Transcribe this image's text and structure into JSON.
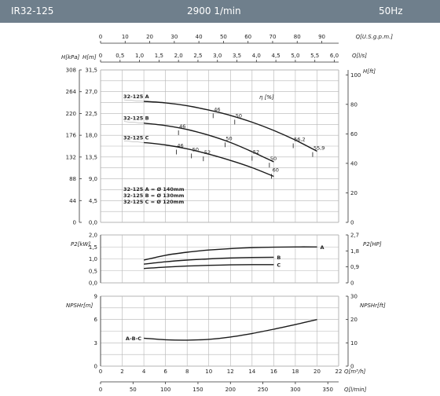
{
  "header": {
    "model": "IR32-125",
    "speed": "2900 1/min",
    "frequency": "50Hz"
  },
  "colors": {
    "header_bg": "#6f7f8c",
    "grid": "#b5b5b5",
    "curve": "#1a1a1a"
  },
  "chart_data": {
    "type": "line",
    "x_axes": {
      "top_usgpm": {
        "label": "Q[U.S.g.p.m.]",
        "ticks": [
          0,
          10,
          20,
          30,
          40,
          50,
          60,
          70,
          80,
          90
        ]
      },
      "top_ls": {
        "label": "Q[l/s]",
        "ticks": [
          "0",
          "0,5",
          "1,0",
          "1,5",
          "2,0",
          "2,5",
          "3,0",
          "3,5",
          "4,0",
          "4,5",
          "5,0",
          "5,5",
          "6,0"
        ]
      },
      "bottom_m3h": {
        "label": "Q[m³/h]",
        "ticks": [
          0,
          2,
          4,
          6,
          8,
          10,
          12,
          14,
          16,
          18,
          20,
          22
        ]
      },
      "bottom_lmin": {
        "label": "Q[l/min]",
        "ticks": [
          0,
          50,
          100,
          150,
          200,
          250,
          300,
          350
        ]
      }
    },
    "head_panel": {
      "left_outer_label": "H[kPa]",
      "left_outer_ticks": [
        "0",
        "44",
        "88",
        "132",
        "176",
        "220",
        "264",
        "308"
      ],
      "left_inner_label": "H[m]",
      "left_inner_ticks": [
        "0,0",
        "4,5",
        "9,0",
        "13,5",
        "18,0",
        "22,5",
        "27,0",
        "31,5"
      ],
      "right_label": "H[ft]",
      "right_ticks": [
        "0",
        "20",
        "40",
        "60",
        "80",
        "100"
      ],
      "efficiency_label": "η [%]",
      "ylim": [
        0,
        31.5
      ],
      "series": [
        {
          "name": "32-125 A",
          "x": [
            4,
            6,
            8,
            10,
            12,
            14,
            16,
            18,
            20
          ],
          "y": [
            25.0,
            24.7,
            24.1,
            23.2,
            22.1,
            20.7,
            19.0,
            17.0,
            14.7
          ]
        },
        {
          "name": "32-125 B",
          "x": [
            4,
            6,
            8,
            10,
            12,
            14,
            16
          ],
          "y": [
            20.5,
            20.0,
            19.2,
            18.0,
            16.5,
            14.6,
            12.5
          ]
        },
        {
          "name": "32-125 C",
          "x": [
            4,
            6,
            8,
            10,
            12,
            14,
            16
          ],
          "y": [
            16.5,
            16.0,
            15.2,
            14.1,
            12.8,
            11.3,
            9.5
          ]
        }
      ],
      "efficiency_labels": [
        {
          "text": "46",
          "x": 10.4,
          "y": 23.0
        },
        {
          "text": "50",
          "x": 12.4,
          "y": 21.7
        },
        {
          "text": "56,2",
          "x": 17.8,
          "y": 16.8
        },
        {
          "text": "55,9",
          "x": 19.6,
          "y": 15.0
        },
        {
          "text": "46",
          "x": 7.2,
          "y": 19.5
        },
        {
          "text": "50",
          "x": 11.5,
          "y": 17.0
        },
        {
          "text": "52",
          "x": 14.0,
          "y": 14.2
        },
        {
          "text": "50",
          "x": 15.6,
          "y": 12.8
        },
        {
          "text": "60",
          "x": 15.8,
          "y": 10.5
        },
        {
          "text": "46",
          "x": 7.0,
          "y": 15.5
        },
        {
          "text": "50",
          "x": 8.4,
          "y": 14.7
        },
        {
          "text": "52",
          "x": 9.5,
          "y": 14.1
        }
      ],
      "legend_lines": [
        "32-125 A = Ø 140mm",
        "32-125 B = Ø 130mm",
        "32-125 C = Ø 120mm"
      ]
    },
    "power_panel": {
      "left_label": "P2[kW]",
      "left_ticks": [
        "0,0",
        "0,5",
        "1,0",
        "1,5",
        "2,0"
      ],
      "right_label": "P2[HP]",
      "right_ticks": [
        "0",
        "0,9",
        "1,8",
        "2,7"
      ],
      "ylim": [
        0,
        2
      ],
      "series": [
        {
          "name": "A",
          "x": [
            4,
            6,
            8,
            10,
            12,
            14,
            16,
            18,
            20
          ],
          "y": [
            0.95,
            1.15,
            1.28,
            1.37,
            1.43,
            1.47,
            1.49,
            1.5,
            1.5
          ]
        },
        {
          "name": "B",
          "x": [
            4,
            6,
            8,
            10,
            12,
            14,
            16
          ],
          "y": [
            0.78,
            0.88,
            0.95,
            1.0,
            1.04,
            1.06,
            1.07
          ]
        },
        {
          "name": "C",
          "x": [
            4,
            6,
            8,
            10,
            12,
            14,
            16
          ],
          "y": [
            0.6,
            0.66,
            0.7,
            0.73,
            0.75,
            0.76,
            0.76
          ]
        }
      ]
    },
    "npsh_panel": {
      "left_label": "NPSHr[m]",
      "left_ticks": [
        "0",
        "3",
        "6",
        "9"
      ],
      "right_label": "NPSHr[ft]",
      "right_ticks": [
        "0",
        "10",
        "20",
        "30"
      ],
      "ylim": [
        0,
        9
      ],
      "series": [
        {
          "name": "A-B-C",
          "x": [
            4,
            6,
            8,
            10,
            12,
            14,
            16,
            18,
            20
          ],
          "y": [
            3.6,
            3.4,
            3.35,
            3.45,
            3.75,
            4.2,
            4.75,
            5.35,
            6.0
          ]
        }
      ]
    }
  }
}
